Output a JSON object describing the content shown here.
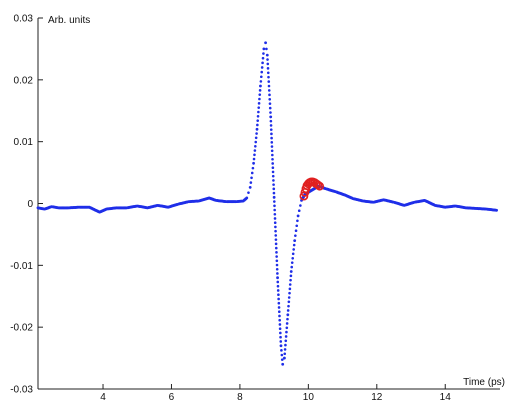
{
  "chart_data": {
    "type": "scatter",
    "title": "",
    "xlabel": "Time (ps)",
    "ylabel": "Arb. units",
    "xlim": [
      2.1,
      15.6
    ],
    "ylim": [
      -0.03,
      0.03
    ],
    "x_ticks": [
      4,
      6,
      8,
      10,
      12,
      14
    ],
    "y_ticks": [
      0.03,
      0.02,
      0.01,
      0,
      -0.01,
      -0.02,
      -0.03
    ],
    "y_tick_labels": [
      "0.03",
      "0.02",
      "0.01",
      "0",
      "-0.01",
      "-0.02",
      "-0.03"
    ],
    "grid": false,
    "colors": {
      "main": "#1f2ee8",
      "highlight": "#e02020"
    },
    "series": [
      {
        "marker": "dot",
        "points": [
          [
            2.1,
            -0.0007
          ],
          [
            2.3,
            -0.0009
          ],
          [
            2.5,
            -0.0005
          ],
          [
            2.7,
            -0.0007
          ],
          [
            3.0,
            -0.0007
          ],
          [
            3.3,
            -0.0006
          ],
          [
            3.6,
            -0.0006
          ],
          [
            3.9,
            -0.0014
          ],
          [
            4.1,
            -0.0009
          ],
          [
            4.4,
            -0.0007
          ],
          [
            4.7,
            -0.0007
          ],
          [
            5.0,
            -0.0004
          ],
          [
            5.3,
            -0.0007
          ],
          [
            5.6,
            -0.0003
          ],
          [
            5.9,
            -0.0006
          ],
          [
            6.2,
            -0.0001
          ],
          [
            6.5,
            0.0003
          ],
          [
            6.8,
            0.0004
          ],
          [
            7.1,
            0.0009
          ],
          [
            7.3,
            0.0005
          ],
          [
            7.6,
            0.0003
          ],
          [
            7.9,
            0.0003
          ],
          [
            8.1,
            0.0004
          ],
          [
            8.2,
            0.0009
          ],
          [
            8.3,
            0.0026
          ],
          [
            8.4,
            0.0065
          ],
          [
            8.5,
            0.012
          ],
          [
            8.6,
            0.019
          ],
          [
            8.7,
            0.025
          ],
          [
            8.75,
            0.026
          ],
          [
            8.8,
            0.024
          ],
          [
            8.9,
            0.014
          ],
          [
            9.0,
            0.001
          ],
          [
            9.1,
            -0.012
          ],
          [
            9.2,
            -0.023
          ],
          [
            9.25,
            -0.026
          ],
          [
            9.3,
            -0.025
          ],
          [
            9.4,
            -0.018
          ],
          [
            9.5,
            -0.011
          ],
          [
            9.6,
            -0.006
          ],
          [
            9.7,
            -0.002
          ],
          [
            9.8,
            0.0005
          ],
          [
            9.9,
            0.0015
          ],
          [
            10.3,
            0.0028
          ],
          [
            10.5,
            0.0024
          ],
          [
            10.8,
            0.0019
          ],
          [
            11.1,
            0.0013
          ],
          [
            11.3,
            0.0008
          ],
          [
            11.6,
            0.0004
          ],
          [
            11.9,
            0.0002
          ],
          [
            12.2,
            0.0006
          ],
          [
            12.5,
            0.0002
          ],
          [
            12.8,
            -0.0003
          ],
          [
            13.1,
            0.0002
          ],
          [
            13.4,
            0.0005
          ],
          [
            13.7,
            -0.0003
          ],
          [
            14.0,
            -0.0006
          ],
          [
            14.3,
            -0.0004
          ],
          [
            14.6,
            -0.0007
          ],
          [
            14.9,
            -0.0008
          ],
          [
            15.2,
            -0.0009
          ],
          [
            15.5,
            -0.0011
          ]
        ]
      },
      {
        "marker": "circle",
        "points": [
          [
            9.87,
            0.0012
          ],
          [
            9.9,
            0.0018
          ],
          [
            9.93,
            0.0024
          ],
          [
            9.96,
            0.0029
          ],
          [
            10.0,
            0.0032
          ],
          [
            10.04,
            0.0034
          ],
          [
            10.08,
            0.0035
          ],
          [
            10.13,
            0.0035
          ],
          [
            10.18,
            0.0034
          ],
          [
            10.23,
            0.0032
          ],
          [
            10.28,
            0.003
          ],
          [
            10.33,
            0.0028
          ]
        ]
      }
    ]
  }
}
